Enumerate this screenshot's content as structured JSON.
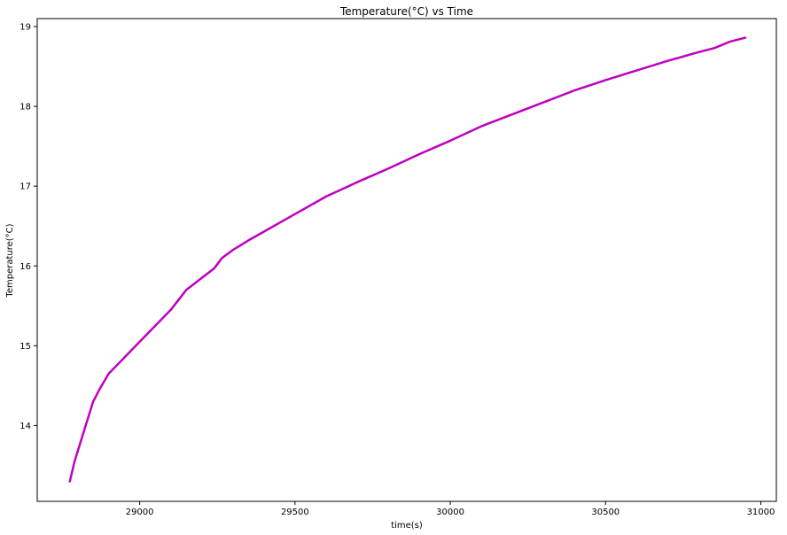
{
  "chart_data": {
    "type": "line",
    "title": "Temperature(°C) vs Time",
    "xlabel": "time(s)",
    "ylabel": "Temperature(°C)",
    "xlim": [
      28670,
      31050
    ],
    "ylim": [
      13.05,
      19.1
    ],
    "xticks": [
      29000,
      29500,
      30000,
      30500,
      31000
    ],
    "yticks": [
      14,
      15,
      16,
      17,
      18,
      19
    ],
    "grid": false,
    "color": "#bf00bf",
    "series": [
      {
        "x": [
          28775,
          28790,
          28810,
          28830,
          28850,
          28870,
          28900,
          28950,
          29000,
          29050,
          29100,
          29150,
          29200,
          29240,
          29265,
          29300,
          29350,
          29400,
          29500,
          29600,
          29700,
          29800,
          29900,
          30000,
          30100,
          30200,
          30300,
          30400,
          30500,
          30600,
          30700,
          30800,
          30850,
          30900,
          30950
        ],
        "y": [
          13.3,
          13.55,
          13.8,
          14.05,
          14.3,
          14.45,
          14.65,
          14.85,
          15.05,
          15.25,
          15.45,
          15.7,
          15.85,
          15.97,
          16.1,
          16.2,
          16.32,
          16.43,
          16.65,
          16.87,
          17.05,
          17.22,
          17.4,
          17.57,
          17.75,
          17.9,
          18.05,
          18.2,
          18.33,
          18.45,
          18.57,
          18.68,
          18.73,
          18.81,
          18.86
        ]
      }
    ]
  }
}
